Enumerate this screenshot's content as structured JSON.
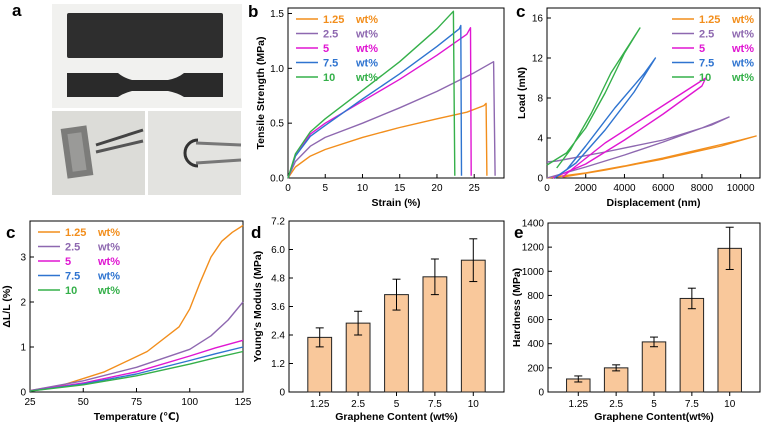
{
  "colors": {
    "c1": "#f28e1c",
    "c2": "#8e68b0",
    "c3": "#e016d2",
    "c4": "#2f74d0",
    "c5": "#35b04a",
    "bar_fill": "#f9c89b",
    "bar_edge": "#222222"
  },
  "photo": {
    "letter": "a",
    "icons": [
      "dumbbell-specimen-photo",
      "bent-strip-photo",
      "tweezers-loop-photo"
    ]
  },
  "chart_data": [
    {
      "id": "b",
      "type": "line",
      "letter": "b",
      "title": "",
      "xlabel": "Strain (%)",
      "ylabel": "Tensile Strength (MPa)",
      "xlim": [
        0,
        29
      ],
      "ylim": [
        0,
        1.55
      ],
      "xticks": [
        "0",
        "5",
        "10",
        "15",
        "20",
        "25"
      ],
      "yticks": [
        "0.0",
        "0.5",
        "1.0",
        "1.5"
      ],
      "legend": [
        "1.25 wt%",
        "2.5 wt%",
        "5 wt%",
        "7.5 wt%",
        "10 wt%"
      ],
      "legend_position": "top-left",
      "series": [
        {
          "name": "1.25 wt%",
          "color": "c1",
          "points": [
            [
              0,
              0
            ],
            [
              1,
              0.1
            ],
            [
              3,
              0.2
            ],
            [
              5,
              0.26
            ],
            [
              10,
              0.37
            ],
            [
              15,
              0.46
            ],
            [
              20,
              0.54
            ],
            [
              24,
              0.6
            ],
            [
              26.3,
              0.66
            ],
            [
              26.6,
              0.68
            ],
            [
              26.7,
              0.02
            ]
          ]
        },
        {
          "name": "2.5 wt%",
          "color": "c2",
          "points": [
            [
              0,
              0
            ],
            [
              1,
              0.15
            ],
            [
              3,
              0.29
            ],
            [
              5,
              0.37
            ],
            [
              10,
              0.5
            ],
            [
              15,
              0.64
            ],
            [
              20,
              0.79
            ],
            [
              25,
              0.96
            ],
            [
              27.6,
              1.06
            ],
            [
              27.8,
              0.02
            ]
          ]
        },
        {
          "name": "5 wt%",
          "color": "c3",
          "points": [
            [
              0,
              0
            ],
            [
              1,
              0.2
            ],
            [
              3,
              0.4
            ],
            [
              5,
              0.5
            ],
            [
              10,
              0.7
            ],
            [
              15,
              0.9
            ],
            [
              20,
              1.12
            ],
            [
              24,
              1.31
            ],
            [
              24.5,
              1.37
            ],
            [
              24.6,
              0.02
            ]
          ]
        },
        {
          "name": "7.5 wt%",
          "color": "c4",
          "points": [
            [
              0,
              0
            ],
            [
              1,
              0.2
            ],
            [
              3,
              0.38
            ],
            [
              5,
              0.48
            ],
            [
              10,
              0.72
            ],
            [
              15,
              0.95
            ],
            [
              20,
              1.2
            ],
            [
              23,
              1.36
            ],
            [
              23.2,
              1.39
            ],
            [
              23.3,
              0.02
            ]
          ]
        },
        {
          "name": "10 wt%",
          "color": "c5",
          "points": [
            [
              0,
              0
            ],
            [
              1,
              0.22
            ],
            [
              3,
              0.42
            ],
            [
              5,
              0.54
            ],
            [
              10,
              0.8
            ],
            [
              15,
              1.06
            ],
            [
              20,
              1.36
            ],
            [
              22.2,
              1.52
            ],
            [
              22.4,
              0.02
            ]
          ]
        }
      ]
    },
    {
      "id": "c-top",
      "type": "line",
      "letter": "c",
      "title": "",
      "xlabel": "Displacement (nm)",
      "ylabel": "Load (mN)",
      "xlim": [
        0,
        11000
      ],
      "ylim": [
        0,
        17
      ],
      "xticks": [
        "0",
        "2000",
        "4000",
        "6000",
        "8000",
        "10000"
      ],
      "yticks": [
        "0",
        "4",
        "8",
        "12",
        "16"
      ],
      "legend": [
        "1.25 wt%",
        "2.5 wt%",
        "5 wt%",
        "7.5 wt%",
        "10 wt%"
      ],
      "legend_position": "top-right",
      "series": [
        {
          "name": "1.25 wt%",
          "color": "c1",
          "points": [
            [
              0,
              0
            ],
            [
              2000,
              0.5
            ],
            [
              4000,
              1.2
            ],
            [
              6000,
              2
            ],
            [
              8000,
              2.9
            ],
            [
              10000,
              3.8
            ],
            [
              10800,
              4.2
            ],
            [
              9000,
              3.2
            ],
            [
              6000,
              1.9
            ],
            [
              3000,
              0.8
            ],
            [
              800,
              0.1
            ]
          ]
        },
        {
          "name": "2.5 wt%",
          "color": "c2",
          "points": [
            [
              0,
              0
            ],
            [
              2000,
              1.1
            ],
            [
              4000,
              2.3
            ],
            [
              6000,
              3.6
            ],
            [
              8000,
              5
            ],
            [
              9400,
              6.1
            ],
            [
              8500,
              5.3
            ],
            [
              6000,
              3.8
            ],
            [
              3000,
              2.6
            ],
            [
              500,
              1.7
            ],
            [
              0,
              1.6
            ]
          ]
        },
        {
          "name": "5 wt%",
          "color": "c3",
          "points": [
            [
              300,
              0
            ],
            [
              2000,
              1.4
            ],
            [
              4000,
              3.8
            ],
            [
              6000,
              6.4
            ],
            [
              8000,
              9.2
            ],
            [
              8200,
              10
            ],
            [
              7000,
              8.5
            ],
            [
              5000,
              6
            ],
            [
              3000,
              3.5
            ],
            [
              1500,
              1.2
            ],
            [
              800,
              0.1
            ]
          ]
        },
        {
          "name": "7.5 wt%",
          "color": "c4",
          "points": [
            [
              400,
              0
            ],
            [
              1500,
              1.5
            ],
            [
              3000,
              4.8
            ],
            [
              4500,
              8.6
            ],
            [
              5600,
              12
            ],
            [
              5000,
              10.4
            ],
            [
              3500,
              7
            ],
            [
              2000,
              3.2
            ],
            [
              1000,
              0.8
            ]
          ]
        },
        {
          "name": "10 wt%",
          "color": "c5",
          "points": [
            [
              0,
              1.3
            ],
            [
              1000,
              2.5
            ],
            [
              2000,
              5
            ],
            [
              3000,
              8.5
            ],
            [
              4000,
              12.5
            ],
            [
              4800,
              15
            ],
            [
              4300,
              13.5
            ],
            [
              3300,
              10.5
            ],
            [
              2300,
              6.5
            ],
            [
              1200,
              2.8
            ],
            [
              500,
              1
            ]
          ]
        }
      ]
    },
    {
      "id": "c-bottom",
      "type": "line",
      "letter": "c",
      "title": "",
      "xlabel": "Temperature (℃)",
      "ylabel": "ΔL/L (%)",
      "xlim": [
        25,
        125
      ],
      "ylim": [
        0,
        3.8
      ],
      "xticks": [
        "25",
        "50",
        "75",
        "100",
        "125"
      ],
      "yticks": [
        "0",
        "1",
        "2",
        "3"
      ],
      "legend": [
        "1.25 wt%",
        "2.5 wt%",
        "5 wt%",
        "7.5 wt%",
        "10 wt%"
      ],
      "legend_position": "top-left",
      "series": [
        {
          "name": "1.25 wt%",
          "color": "c1",
          "points": [
            [
              25,
              0.03
            ],
            [
              40,
              0.15
            ],
            [
              60,
              0.45
            ],
            [
              80,
              0.9
            ],
            [
              95,
              1.45
            ],
            [
              100,
              1.85
            ],
            [
              105,
              2.45
            ],
            [
              110,
              3.0
            ],
            [
              115,
              3.35
            ],
            [
              120,
              3.55
            ],
            [
              125,
              3.7
            ]
          ]
        },
        {
          "name": "2.5 wt%",
          "color": "c2",
          "points": [
            [
              25,
              0.03
            ],
            [
              50,
              0.25
            ],
            [
              75,
              0.55
            ],
            [
              100,
              0.95
            ],
            [
              110,
              1.25
            ],
            [
              118,
              1.6
            ],
            [
              125,
              2.0
            ]
          ]
        },
        {
          "name": "5 wt%",
          "color": "c3",
          "points": [
            [
              25,
              0.02
            ],
            [
              50,
              0.2
            ],
            [
              75,
              0.45
            ],
            [
              100,
              0.8
            ],
            [
              112,
              0.98
            ],
            [
              125,
              1.15
            ]
          ]
        },
        {
          "name": "7.5 wt%",
          "color": "c4",
          "points": [
            [
              25,
              0.02
            ],
            [
              50,
              0.18
            ],
            [
              75,
              0.4
            ],
            [
              100,
              0.7
            ],
            [
              112,
              0.85
            ],
            [
              125,
              1.0
            ]
          ]
        },
        {
          "name": "10 wt%",
          "color": "c5",
          "points": [
            [
              25,
              0.02
            ],
            [
              50,
              0.16
            ],
            [
              75,
              0.36
            ],
            [
              100,
              0.62
            ],
            [
              112,
              0.76
            ],
            [
              125,
              0.9
            ]
          ]
        }
      ]
    },
    {
      "id": "d",
      "type": "bar",
      "letter": "d",
      "title": "",
      "xlabel": "Graphene Content (wt%)",
      "ylabel": "Young's Moduls (MPa)",
      "ylim": [
        0,
        7.2
      ],
      "yticks": [
        "0",
        "1.2",
        "2.4",
        "3.6",
        "4.8",
        "6.0",
        "7.2"
      ],
      "categories": [
        "1.25",
        "2.5",
        "5",
        "7.5",
        "10"
      ],
      "values": [
        2.3,
        2.9,
        4.1,
        4.85,
        5.55
      ],
      "errors": [
        0.4,
        0.5,
        0.65,
        0.75,
        0.9
      ]
    },
    {
      "id": "e",
      "type": "bar",
      "letter": "e",
      "title": "",
      "xlabel": "Graphene Content(wt%)",
      "ylabel": "Hardness (MPa)",
      "ylim": [
        0,
        1400
      ],
      "yticks": [
        "0",
        "200",
        "400",
        "600",
        "800",
        "1000",
        "1200",
        "1400"
      ],
      "categories": [
        "1.25",
        "2.5",
        "5",
        "7.5",
        "10"
      ],
      "values": [
        108,
        200,
        415,
        775,
        1190
      ],
      "errors": [
        25,
        25,
        40,
        85,
        175
      ]
    }
  ]
}
